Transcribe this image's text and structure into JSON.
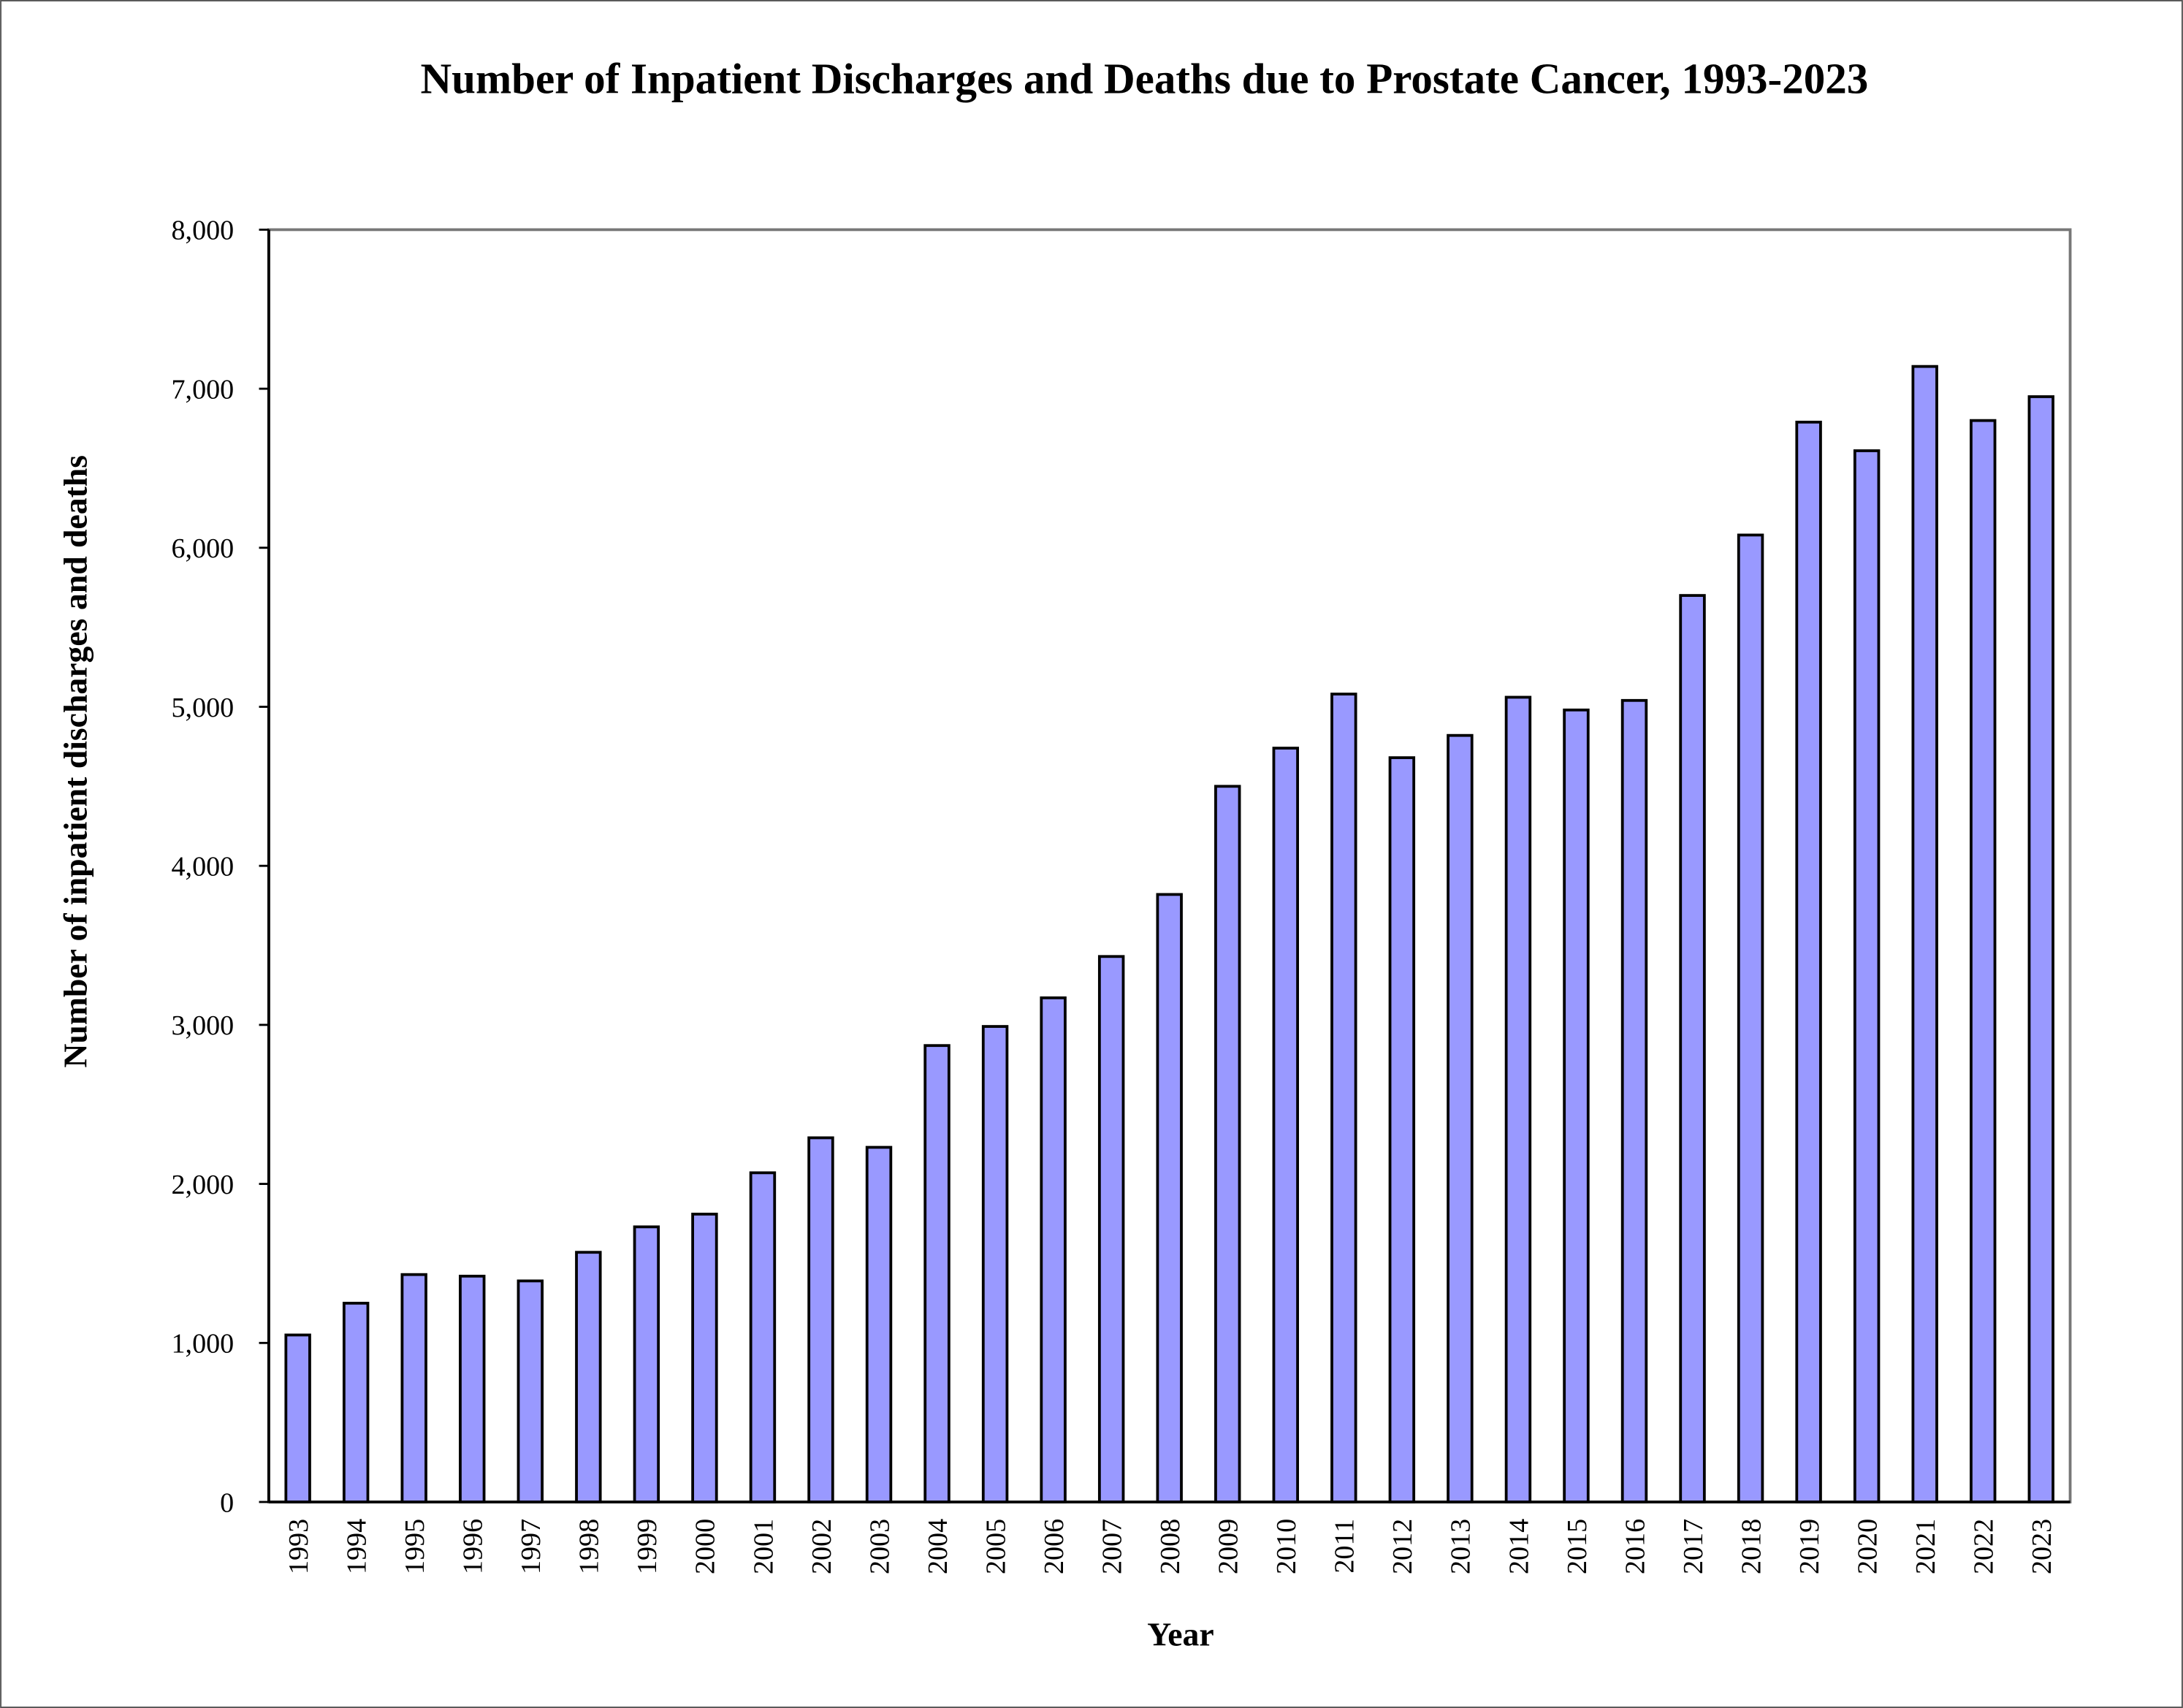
{
  "chart_data": {
    "type": "bar",
    "title": "Number of Inpatient Discharges and Deaths due to Prostate Cancer, 1993-2023",
    "x_label": "Year",
    "y_label": "Number of inpatient discharges and deaths",
    "categories": [
      "1993",
      "1994",
      "1995",
      "1996",
      "1997",
      "1998",
      "1999",
      "2000",
      "2001",
      "2002",
      "2003",
      "2004",
      "2005",
      "2006",
      "2007",
      "2008",
      "2009",
      "2010",
      "2011",
      "2012",
      "2013",
      "2014",
      "2015",
      "2016",
      "2017",
      "2018",
      "2019",
      "2020",
      "2021",
      "2022",
      "2023"
    ],
    "values": [
      1050,
      1250,
      1430,
      1420,
      1390,
      1570,
      1730,
      1810,
      2070,
      2290,
      2230,
      2870,
      2990,
      3170,
      3430,
      3820,
      4500,
      4740,
      5080,
      4680,
      4820,
      5060,
      4980,
      5040,
      5700,
      6080,
      6790,
      6610,
      7140,
      6800,
      6950
    ],
    "color": "#9999ff",
    "ylim": [
      0,
      8000
    ],
    "yticks": [
      0,
      {
        "value": 1000,
        "label": "1,000"
      },
      {
        "value": 2000,
        "label": "2,000"
      },
      {
        "value": 3000,
        "label": "3,000"
      },
      {
        "value": 4000,
        "label": "4,000"
      },
      {
        "value": 5000,
        "label": "5,000"
      },
      {
        "value": 6000,
        "label": "6,000"
      },
      {
        "value": 7000,
        "label": "7,000"
      },
      {
        "value": 8000,
        "label": "8,000"
      }
    ],
    "grid": false
  }
}
